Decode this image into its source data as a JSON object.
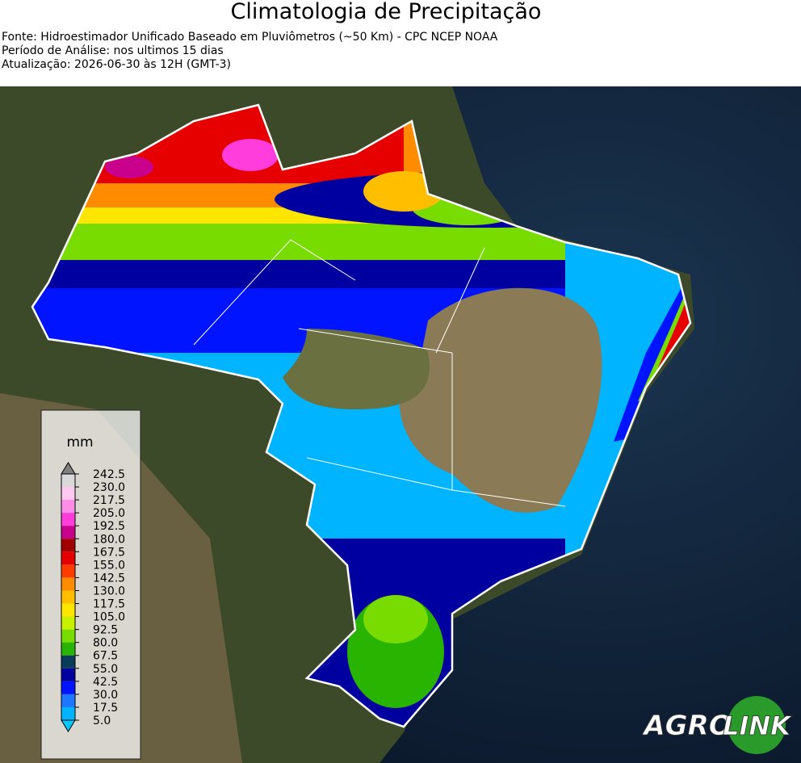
{
  "header": {
    "title": "Climatologia de Precipitação",
    "lines": [
      "Fonte: Hidroestimador Unificado Baseado em Pluviômetros (~50 Km) - CPC NCEP NOAA",
      "Período de Análise: nos ultimos 15 dias",
      "Atualização: 2026-06-30 às 12H (GMT-3)"
    ]
  },
  "colorbar": {
    "unit": "mm",
    "ticks": [
      242.5,
      {
        "value": 230,
        "label": "230.0"
      },
      217.5,
      {
        "value": 205,
        "label": "205.0"
      },
      192.5,
      {
        "value": 180,
        "label": "180.0"
      },
      167.5,
      {
        "value": 155,
        "label": "155.0"
      },
      142.5,
      {
        "value": 130,
        "label": "130.0"
      },
      117.5,
      {
        "value": 105,
        "label": "105.0"
      },
      92.5,
      {
        "value": 80,
        "label": "80.0"
      },
      67.5,
      {
        "value": 55,
        "label": "55.0"
      },
      42.5,
      {
        "value": 30,
        "label": "30.0"
      },
      17.5,
      {
        "value": 5,
        "label": "5.0"
      }
    ],
    "colors": [
      "#d9d9d9",
      "#ffc8f0",
      "#ff8ce6",
      "#ff3cdc",
      "#c8008c",
      "#a00000",
      "#e60000",
      "#ff3c00",
      "#ff8c00",
      "#ffbe00",
      "#ffe600",
      "#c8f000",
      "#78dc00",
      "#28b400",
      "#0a3c5a",
      "#0000a0",
      "#0014ff",
      "#1e78ff",
      "#00b4ff"
    ],
    "over_color": "#808080",
    "under_color": "#00c8ff"
  },
  "logo": [
    "AGRO",
    "LINK"
  ]
}
